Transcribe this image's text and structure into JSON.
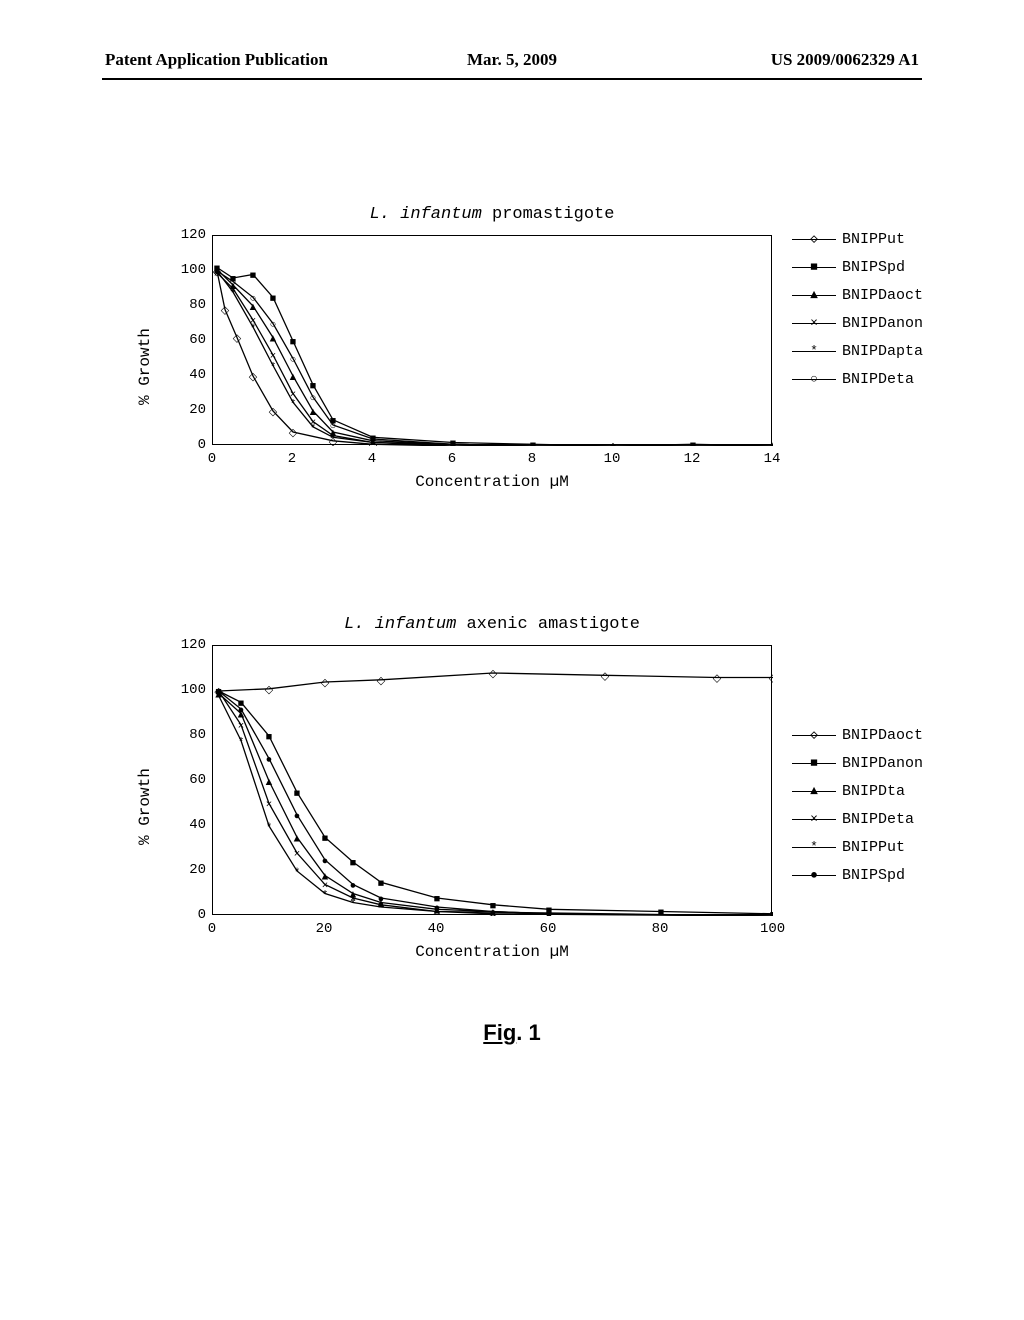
{
  "header": {
    "left": "Patent Application Publication",
    "center": "Mar. 5, 2009",
    "right": "US 2009/0062329 A1"
  },
  "figure_caption": {
    "prefix": "Fig",
    "suffix": ". 1"
  },
  "chart1": {
    "type": "line",
    "title_prefix": "L. infantum",
    "title_suffix": " promastigote",
    "xlabel": "Concentration µM",
    "ylabel": "% Growth",
    "xlim": [
      0,
      14
    ],
    "ylim": [
      0,
      120
    ],
    "xtick_step": 2,
    "ytick_step": 20,
    "xticks": [
      0,
      2,
      4,
      6,
      8,
      10,
      12,
      14
    ],
    "yticks": [
      0,
      20,
      40,
      60,
      80,
      100,
      120
    ],
    "background_color": "#ffffff",
    "line_color": "#000000",
    "title_fontsize": 17,
    "label_fontsize": 16,
    "tick_fontsize": 14,
    "series": [
      {
        "name": "BNIPPut",
        "marker": "◇",
        "points": [
          [
            0.1,
            100
          ],
          [
            0.3,
            78
          ],
          [
            0.6,
            62
          ],
          [
            1,
            40
          ],
          [
            1.5,
            20
          ],
          [
            2,
            8
          ],
          [
            3,
            3
          ],
          [
            4,
            1
          ],
          [
            6,
            0
          ],
          [
            8,
            0
          ],
          [
            10,
            0
          ],
          [
            14,
            0
          ]
        ]
      },
      {
        "name": "BNIPSpd",
        "marker": "■",
        "points": [
          [
            0.1,
            102
          ],
          [
            0.5,
            96
          ],
          [
            1,
            98
          ],
          [
            1.5,
            85
          ],
          [
            2,
            60
          ],
          [
            2.5,
            35
          ],
          [
            3,
            15
          ],
          [
            4,
            5
          ],
          [
            6,
            2
          ],
          [
            8,
            1
          ],
          [
            10,
            0
          ],
          [
            12,
            1
          ],
          [
            14,
            0
          ]
        ]
      },
      {
        "name": "BNIPDaoct",
        "marker": "▲",
        "points": [
          [
            0.1,
            101
          ],
          [
            0.5,
            92
          ],
          [
            1,
            80
          ],
          [
            1.5,
            62
          ],
          [
            2,
            40
          ],
          [
            2.5,
            20
          ],
          [
            3,
            8
          ],
          [
            4,
            3
          ],
          [
            6,
            1
          ],
          [
            8,
            0
          ],
          [
            14,
            0
          ]
        ]
      },
      {
        "name": "BNIPDanon",
        "marker": "×",
        "points": [
          [
            0.1,
            99
          ],
          [
            0.5,
            90
          ],
          [
            1,
            72
          ],
          [
            1.5,
            52
          ],
          [
            2,
            30
          ],
          [
            2.5,
            14
          ],
          [
            3,
            6
          ],
          [
            4,
            2
          ],
          [
            6,
            1
          ],
          [
            8,
            0
          ],
          [
            14,
            0
          ]
        ]
      },
      {
        "name": "BNIPDapta",
        "marker": "*",
        "points": [
          [
            0.1,
            100
          ],
          [
            0.5,
            88
          ],
          [
            1,
            68
          ],
          [
            1.5,
            46
          ],
          [
            2,
            25
          ],
          [
            2.5,
            11
          ],
          [
            3,
            5
          ],
          [
            4,
            2
          ],
          [
            6,
            0
          ],
          [
            8,
            0
          ],
          [
            14,
            0
          ]
        ]
      },
      {
        "name": "BNIPDeta",
        "marker": "○",
        "points": [
          [
            0.1,
            100
          ],
          [
            0.5,
            94
          ],
          [
            1,
            85
          ],
          [
            1.5,
            70
          ],
          [
            2,
            50
          ],
          [
            2.5,
            28
          ],
          [
            3,
            12
          ],
          [
            4,
            4
          ],
          [
            6,
            1
          ],
          [
            8,
            0
          ],
          [
            14,
            0
          ]
        ]
      }
    ],
    "legend": [
      {
        "label": "BNIPPut",
        "marker": "◇"
      },
      {
        "label": "BNIPSpd",
        "marker": "■"
      },
      {
        "label": "BNIPDaoct",
        "marker": "▲"
      },
      {
        "label": "BNIPDanon",
        "marker": "×"
      },
      {
        "label": "BNIPDapta",
        "marker": "*"
      },
      {
        "label": "BNIPDeta",
        "marker": "○"
      }
    ]
  },
  "chart2": {
    "type": "line",
    "title_prefix": "L. infantum",
    "title_suffix": " axenic amastigote",
    "xlabel": "Concentration µM",
    "ylabel": "% Growth",
    "xlim": [
      0,
      100
    ],
    "ylim": [
      0,
      120
    ],
    "xtick_step": 20,
    "ytick_step": 20,
    "xticks": [
      0,
      20,
      40,
      60,
      80,
      100
    ],
    "yticks": [
      0,
      20,
      40,
      60,
      80,
      100,
      120
    ],
    "background_color": "#ffffff",
    "line_color": "#000000",
    "title_fontsize": 17,
    "label_fontsize": 16,
    "tick_fontsize": 14,
    "series": [
      {
        "name": "BNIPDaoct",
        "marker": "◇",
        "points": [
          [
            1,
            100
          ],
          [
            10,
            101
          ],
          [
            20,
            104
          ],
          [
            30,
            105
          ],
          [
            50,
            108
          ],
          [
            70,
            107
          ],
          [
            90,
            106
          ],
          [
            100,
            106
          ]
        ]
      },
      {
        "name": "BNIPDanon",
        "marker": "■",
        "points": [
          [
            1,
            100
          ],
          [
            5,
            95
          ],
          [
            10,
            80
          ],
          [
            15,
            55
          ],
          [
            20,
            35
          ],
          [
            25,
            24
          ],
          [
            30,
            15
          ],
          [
            40,
            8
          ],
          [
            50,
            5
          ],
          [
            60,
            3
          ],
          [
            80,
            2
          ],
          [
            100,
            1
          ]
        ]
      },
      {
        "name": "BNIPDta",
        "marker": "▲",
        "points": [
          [
            1,
            99
          ],
          [
            5,
            90
          ],
          [
            10,
            60
          ],
          [
            15,
            35
          ],
          [
            20,
            18
          ],
          [
            25,
            10
          ],
          [
            30,
            6
          ],
          [
            40,
            3
          ],
          [
            50,
            2
          ],
          [
            60,
            1
          ],
          [
            100,
            0
          ]
        ]
      },
      {
        "name": "BNIPDeta",
        "marker": "×",
        "points": [
          [
            1,
            100
          ],
          [
            5,
            85
          ],
          [
            10,
            50
          ],
          [
            15,
            28
          ],
          [
            20,
            14
          ],
          [
            25,
            8
          ],
          [
            30,
            5
          ],
          [
            40,
            2
          ],
          [
            50,
            1
          ],
          [
            100,
            0
          ]
        ]
      },
      {
        "name": "BNIPPut",
        "marker": "*",
        "points": [
          [
            1,
            98
          ],
          [
            5,
            78
          ],
          [
            10,
            40
          ],
          [
            15,
            20
          ],
          [
            20,
            10
          ],
          [
            25,
            6
          ],
          [
            30,
            4
          ],
          [
            40,
            2
          ],
          [
            100,
            0
          ]
        ]
      },
      {
        "name": "BNIPSpd",
        "marker": "●",
        "points": [
          [
            1,
            100
          ],
          [
            5,
            92
          ],
          [
            10,
            70
          ],
          [
            15,
            45
          ],
          [
            20,
            25
          ],
          [
            25,
            14
          ],
          [
            30,
            8
          ],
          [
            40,
            4
          ],
          [
            50,
            2
          ],
          [
            60,
            1
          ],
          [
            100,
            0
          ]
        ]
      }
    ],
    "legend": [
      {
        "label": "BNIPDaoct",
        "marker": "◇"
      },
      {
        "label": "BNIPDanon",
        "marker": "■"
      },
      {
        "label": "BNIPDta",
        "marker": "▲"
      },
      {
        "label": "BNIPDeta",
        "marker": "×"
      },
      {
        "label": "BNIPPut",
        "marker": "*"
      },
      {
        "label": "BNIPSpd",
        "marker": "●"
      }
    ]
  }
}
